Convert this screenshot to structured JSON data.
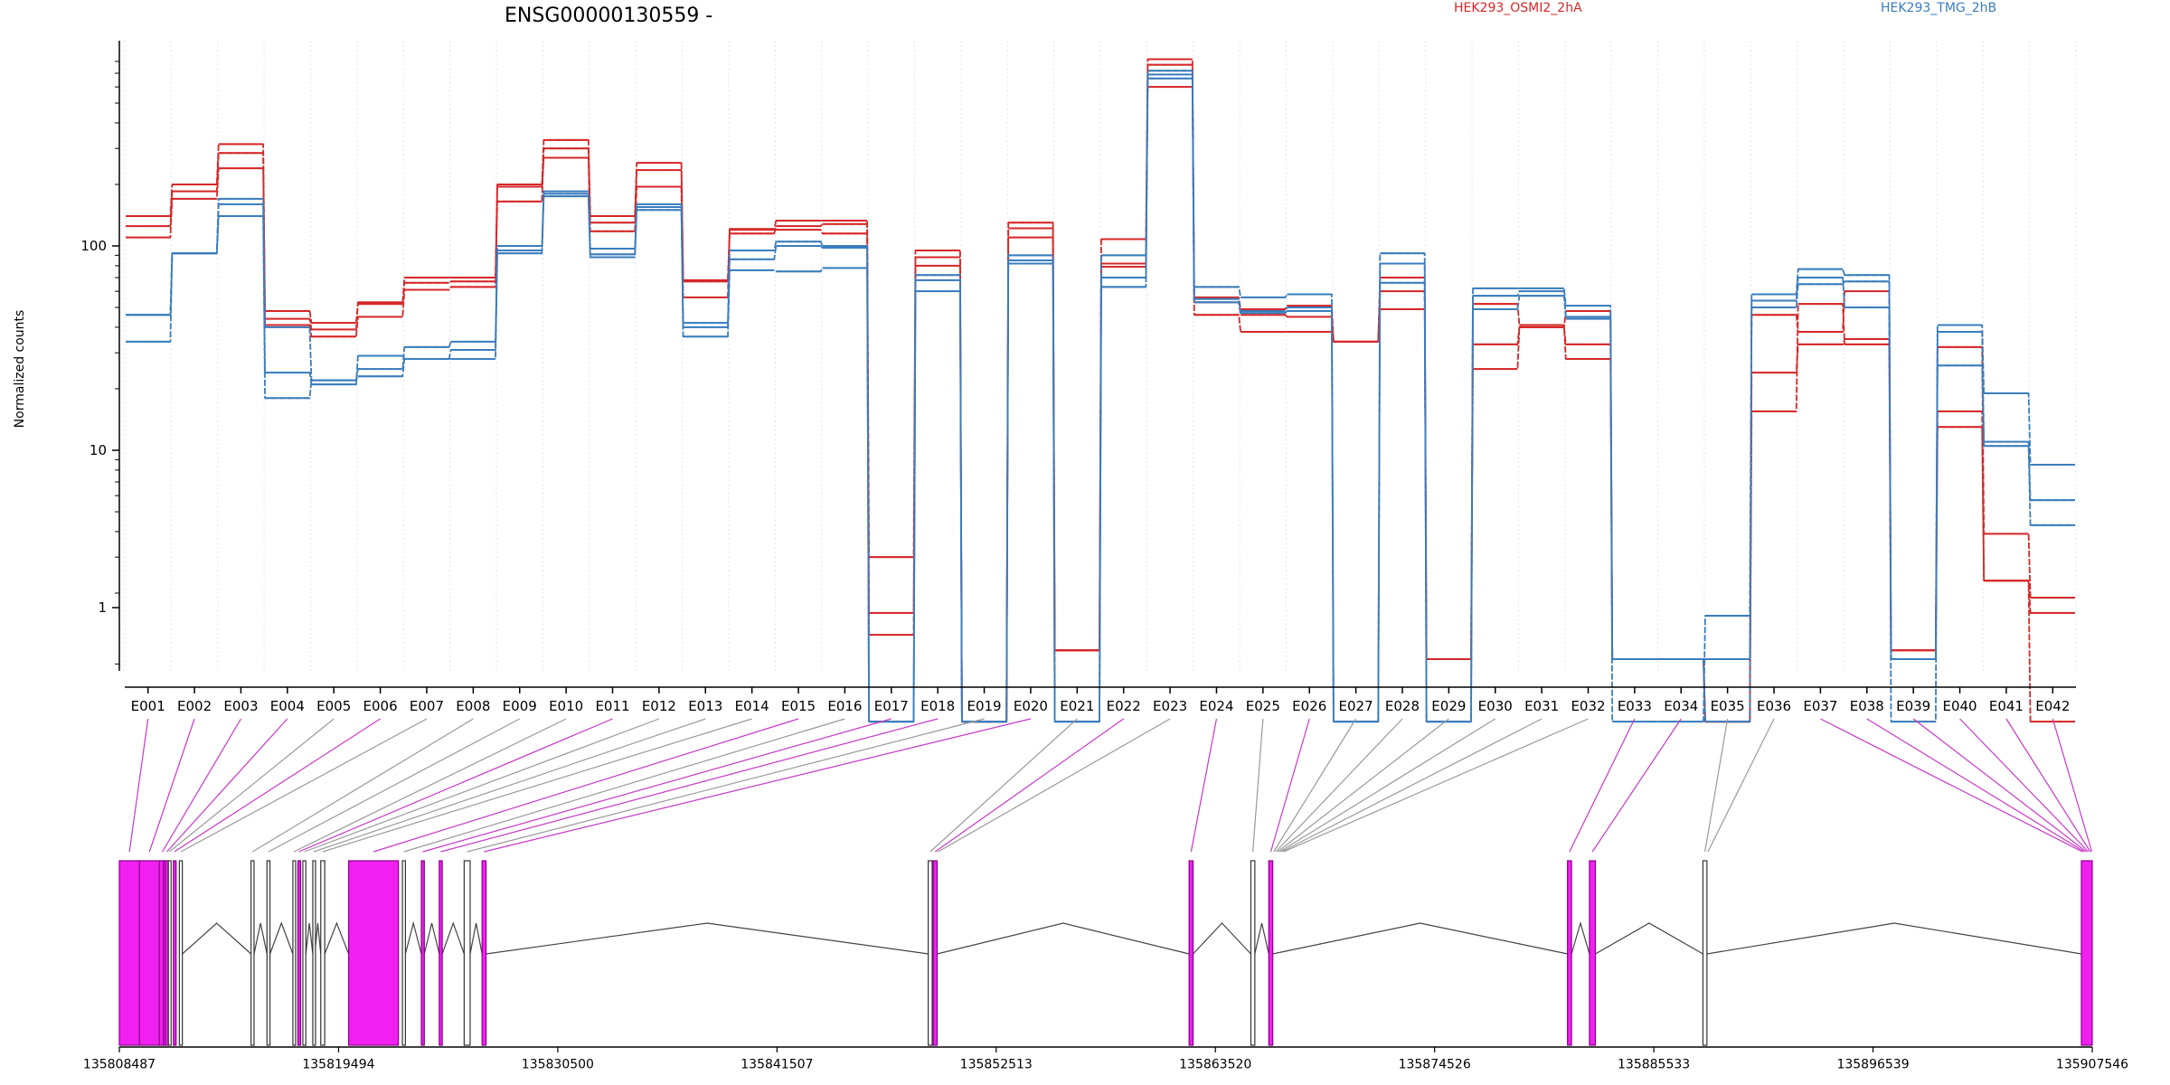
{
  "chart_data": {
    "type": "line",
    "title": "ENSG00000130559 -",
    "ylabel": "Normalized counts",
    "yscale": "log",
    "ylim": [
      0.45,
      900
    ],
    "yticks": [
      "100",
      "10",
      "1"
    ],
    "grid": false,
    "legend_position": "top",
    "categories": [
      "E001",
      "E002",
      "E003",
      "E004",
      "E005",
      "E006",
      "E007",
      "E008",
      "E009",
      "E010",
      "E011",
      "E012",
      "E013",
      "E014",
      "E015",
      "E016",
      "E017",
      "E018",
      "E019",
      "E020",
      "E021",
      "E022",
      "E023",
      "E024",
      "E025",
      "E026",
      "E027",
      "E028",
      "E029",
      "E030",
      "E031",
      "E032",
      "E033",
      "E034",
      "E035",
      "E036",
      "E037",
      "E038",
      "E039",
      "E040",
      "E041",
      "E042"
    ],
    "series": [
      {
        "name": "HEK293_OSMI2_2hA",
        "color": "#d62728",
        "replicates": [
          [
            110,
            170,
            240,
            48,
            42,
            52,
            70,
            70,
            200,
            330,
            140,
            255,
            68,
            120,
            133,
            133,
            3,
            95,
            0.47,
            130,
            1.05,
            108,
            820,
            56,
            49,
            51,
            34,
            70,
            0.95,
            33,
            40,
            33,
            0.95,
            0.95,
            0.47,
            46,
            38,
            60,
            1.05,
            32,
            3.9,
            1.9
          ],
          [
            125,
            185,
            285,
            44,
            39,
            53,
            66,
            67,
            165,
            300,
            130,
            235,
            67,
            115,
            125,
            128,
            1.6,
            88,
            0.47,
            122,
            1.05,
            82,
            770,
            53,
            46,
            45,
            34,
            60,
            0.95,
            52,
            41,
            28,
            0.95,
            0.95,
            0.47,
            24,
            33,
            35,
            1.05,
            15.5,
            2.3,
            1.6
          ],
          [
            140,
            200,
            315,
            41,
            36,
            45,
            61,
            63,
            195,
            270,
            118,
            195,
            56,
            121,
            120,
            115,
            1.25,
            80,
            0.47,
            110,
            1.05,
            79,
            600,
            46,
            38,
            38,
            34,
            49,
            0.95,
            25,
            40,
            48,
            0.95,
            0.95,
            0.47,
            15.5,
            52,
            33,
            0.95,
            13,
            2.3,
            0.47
          ]
        ]
      },
      {
        "name": "HEK293_TMG_2hB",
        "color": "#3a7dbd",
        "replicates": [
          [
            46,
            92,
            170,
            40,
            22,
            25,
            32,
            34,
            100,
            185,
            97,
            160,
            42,
            95,
            105,
            100,
            0.47,
            72,
            0.47,
            90,
            0.47,
            90,
            690,
            63,
            56,
            58,
            0.47,
            92,
            0.47,
            62,
            62,
            51,
            0.95,
            0.95,
            0.47,
            58,
            77,
            72,
            0.95,
            41,
            19,
            8.5
          ],
          [
            46,
            92,
            160,
            24,
            21,
            29,
            28,
            31,
            95,
            180,
            91,
            155,
            40,
            86,
            100,
            98,
            0.47,
            60,
            0.47,
            82,
            0.47,
            70,
            660,
            55,
            48,
            50,
            0.47,
            82,
            0.47,
            57,
            60,
            45,
            0.95,
            0.95,
            0.95,
            50,
            65,
            67,
            0.47,
            38,
            11,
            5.7
          ],
          [
            34,
            92,
            140,
            18,
            22,
            23,
            28,
            28,
            92,
            175,
            88,
            150,
            36,
            76,
            75,
            78,
            0.47,
            68,
            0.47,
            85,
            0.47,
            63,
            720,
            53,
            47,
            48,
            0.47,
            66,
            0.47,
            49,
            57,
            44,
            0.47,
            0.47,
            1.55,
            54,
            70,
            50,
            0.95,
            26,
            10.5,
            4.3
          ]
        ]
      }
    ],
    "gene_model": {
      "genomic_ticks": [
        "135808487",
        "135819494",
        "135830500",
        "135841507",
        "135852513",
        "135863520",
        "135874526",
        "135885533",
        "135896539",
        "135907546"
      ],
      "exons": [
        {
          "s": 135808487,
          "e": 135809500,
          "hit": true
        },
        {
          "s": 135809500,
          "e": 135810500,
          "hit": true
        },
        {
          "s": 135810500,
          "e": 135810700,
          "hit": true
        },
        {
          "s": 135810700,
          "e": 135810800,
          "hit": true
        },
        {
          "s": 135810800,
          "e": 135810950,
          "hit": true
        },
        {
          "s": 135810950,
          "e": 135811050,
          "hit": false
        },
        {
          "s": 135811200,
          "e": 135811300,
          "hit": true
        },
        {
          "s": 135811500,
          "e": 135811650,
          "hit": false
        },
        {
          "s": 135815100,
          "e": 135815250,
          "hit": false
        },
        {
          "s": 135815900,
          "e": 135816050,
          "hit": false
        },
        {
          "s": 135817200,
          "e": 135817300,
          "hit": false
        },
        {
          "s": 135817450,
          "e": 135817550,
          "hit": true
        },
        {
          "s": 135817700,
          "e": 135817850,
          "hit": false
        },
        {
          "s": 135818200,
          "e": 135818300,
          "hit": false
        },
        {
          "s": 135818600,
          "e": 135818800,
          "hit": false
        },
        {
          "s": 135820000,
          "e": 135822500,
          "hit": true
        },
        {
          "s": 135822700,
          "e": 135822850,
          "hit": false
        },
        {
          "s": 135823650,
          "e": 135823800,
          "hit": true
        },
        {
          "s": 135824550,
          "e": 135824700,
          "hit": true
        },
        {
          "s": 135825800,
          "e": 135826100,
          "hit": false
        },
        {
          "s": 135826700,
          "e": 135826900,
          "hit": true
        },
        {
          "s": 135849100,
          "e": 135849300,
          "hit": false
        },
        {
          "s": 135849350,
          "e": 135849550,
          "hit": true
        },
        {
          "s": 135862200,
          "e": 135862400,
          "hit": true
        },
        {
          "s": 135865300,
          "e": 135865500,
          "hit": false
        },
        {
          "s": 135866200,
          "e": 135866400,
          "hit": true
        },
        {
          "s": 135881200,
          "e": 135881400,
          "hit": true
        },
        {
          "s": 135882300,
          "e": 135882600,
          "hit": true
        },
        {
          "s": 135888000,
          "e": 135888200,
          "hit": false
        },
        {
          "s": 135907000,
          "e": 135907546,
          "hit": true
        }
      ],
      "exon_bins": [
        [
          135808487,
          135809500
        ],
        [
          135809500,
          135810500
        ],
        [
          135810500,
          135810800
        ],
        [
          135810800,
          135810950
        ],
        [
          135810950,
          135811050
        ],
        [
          135811200,
          135811300
        ],
        [
          135811500,
          135811650
        ],
        [
          135815100,
          135815250
        ],
        [
          135815900,
          135816050
        ],
        [
          135817200,
          135817300
        ],
        [
          135817450,
          135817550
        ],
        [
          135817700,
          135817850
        ],
        [
          135818200,
          135818300
        ],
        [
          135818600,
          135818800
        ],
        [
          135820000,
          135822500
        ],
        [
          135822700,
          135822850
        ],
        [
          135823650,
          135823800
        ],
        [
          135824550,
          135824700
        ],
        [
          135825800,
          135826100
        ],
        [
          135826700,
          135826900
        ],
        [
          135849100,
          135849300
        ],
        [
          135849350,
          135849550
        ],
        [
          135849550,
          135849650
        ],
        [
          135862200,
          135862400
        ],
        [
          135865300,
          135865500
        ],
        [
          135866200,
          135866400
        ],
        [
          135866400,
          135866500
        ],
        [
          135866500,
          135866600
        ],
        [
          135866600,
          135866700
        ],
        [
          135866700,
          135866800
        ],
        [
          135866800,
          135866900
        ],
        [
          135866900,
          135867000
        ],
        [
          135881200,
          135881400
        ],
        [
          135882300,
          135882600
        ],
        [
          135888000,
          135888200
        ],
        [
          135888200,
          135888300
        ],
        [
          135907000,
          135907100
        ],
        [
          135907100,
          135907200
        ],
        [
          135907200,
          135907300
        ],
        [
          135907300,
          135907400
        ],
        [
          135907400,
          135907500
        ],
        [
          135907500,
          135907546
        ]
      ],
      "hit_color": "#c838c8",
      "fill_color": "#f020f0"
    }
  }
}
